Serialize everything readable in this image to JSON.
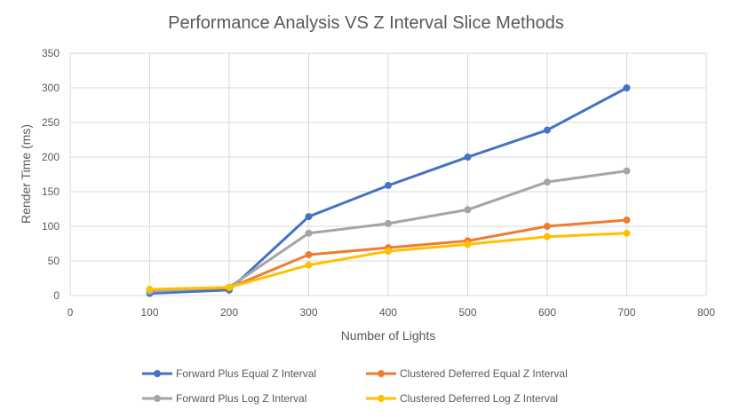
{
  "chart_data": {
    "type": "line",
    "title": "Performance Analysis VS Z Interval Slice Methods",
    "xlabel": "Number of Lights",
    "ylabel": "Render Time (ms)",
    "xlim": [
      0,
      800
    ],
    "ylim": [
      0,
      350
    ],
    "xticks": [
      0,
      100,
      200,
      300,
      400,
      500,
      600,
      700,
      800
    ],
    "yticks": [
      0,
      50,
      100,
      150,
      200,
      250,
      300,
      350
    ],
    "grid": true,
    "legend_position": "bottom",
    "x": [
      100,
      200,
      300,
      400,
      500,
      600,
      700
    ],
    "series": [
      {
        "name": "Forward Plus Equal Z Interval",
        "color": "#4472C4",
        "values": [
          3,
          8,
          114,
          159,
          200,
          239,
          300
        ]
      },
      {
        "name": "Clustered Deferred Equal Z Interval",
        "color": "#ED7D31",
        "values": [
          7,
          11,
          59,
          69,
          79,
          100,
          109
        ]
      },
      {
        "name": "Forward Plus Log Z Interval",
        "color": "#A5A5A5",
        "values": [
          6,
          12,
          90,
          104,
          124,
          164,
          180
        ]
      },
      {
        "name": "Clustered Deferred Log Z Interval",
        "color": "#FFC000",
        "values": [
          9,
          12,
          44,
          64,
          74,
          85,
          90
        ]
      }
    ]
  }
}
